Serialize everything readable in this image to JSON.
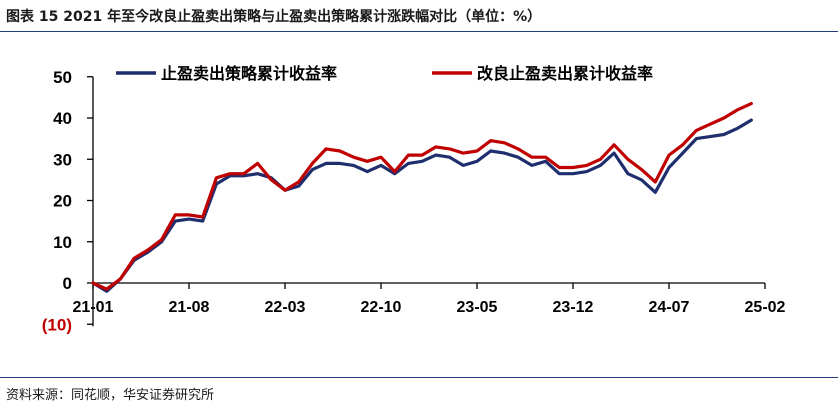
{
  "title": "图表 15  2021 年至今改良止盈卖出策略与止盈卖出策略累计涨跌幅对比（单位：%）",
  "source": "资料来源：同花顺，华安证券研究所",
  "chart_data": {
    "type": "line",
    "ylim": [
      -10,
      50
    ],
    "y_ticks": [
      {
        "value": 50,
        "label": "50"
      },
      {
        "value": 40,
        "label": "40"
      },
      {
        "value": 30,
        "label": "30"
      },
      {
        "value": 20,
        "label": "20"
      },
      {
        "value": 10,
        "label": "10"
      },
      {
        "value": 0,
        "label": "0"
      },
      {
        "value": -10,
        "label": "(10)"
      }
    ],
    "x_ticks": [
      {
        "date": "2021-01",
        "label": "21-01"
      },
      {
        "date": "2021-08",
        "label": "21-08"
      },
      {
        "date": "2022-03",
        "label": "22-03"
      },
      {
        "date": "2022-10",
        "label": "22-10"
      },
      {
        "date": "2023-05",
        "label": "23-05"
      },
      {
        "date": "2023-12",
        "label": "23-12"
      },
      {
        "date": "2024-07",
        "label": "24-07"
      },
      {
        "date": "2025-02",
        "label": "25-02"
      }
    ],
    "xlim": [
      "2021-01",
      "2025-02"
    ],
    "grid": false,
    "legend_position": "top",
    "series": [
      {
        "name": "止盈卖出策略累计收益率",
        "color": "#1f2f6e",
        "points": [
          [
            "2021-01",
            0
          ],
          [
            "2021-02",
            -2
          ],
          [
            "2021-03",
            1
          ],
          [
            "2021-04",
            5.5
          ],
          [
            "2021-05",
            7.5
          ],
          [
            "2021-06",
            10
          ],
          [
            "2021-07",
            15
          ],
          [
            "2021-08",
            15.5
          ],
          [
            "2021-09",
            15
          ],
          [
            "2021-10",
            24
          ],
          [
            "2021-11",
            26
          ],
          [
            "2021-12",
            26
          ],
          [
            "2022-01",
            26.5
          ],
          [
            "2022-02",
            25.5
          ],
          [
            "2022-03",
            22.5
          ],
          [
            "2022-04",
            23.5
          ],
          [
            "2022-05",
            27.5
          ],
          [
            "2022-06",
            29
          ],
          [
            "2022-07",
            29
          ],
          [
            "2022-08",
            28.5
          ],
          [
            "2022-09",
            27
          ],
          [
            "2022-10",
            28.5
          ],
          [
            "2022-11",
            26.5
          ],
          [
            "2022-12",
            29
          ],
          [
            "2023-01",
            29.5
          ],
          [
            "2023-02",
            31
          ],
          [
            "2023-03",
            30.5
          ],
          [
            "2023-04",
            28.5
          ],
          [
            "2023-05",
            29.5
          ],
          [
            "2023-06",
            32
          ],
          [
            "2023-07",
            31.5
          ],
          [
            "2023-08",
            30.5
          ],
          [
            "2023-09",
            28.5
          ],
          [
            "2023-10",
            29.5
          ],
          [
            "2023-11",
            26.5
          ],
          [
            "2023-12",
            26.5
          ],
          [
            "2024-01",
            27
          ],
          [
            "2024-02",
            28.5
          ],
          [
            "2024-03",
            31.5
          ],
          [
            "2024-04",
            26.5
          ],
          [
            "2024-05",
            25
          ],
          [
            "2024-06",
            22
          ],
          [
            "2024-07",
            28
          ],
          [
            "2024-08",
            31.5
          ],
          [
            "2024-09",
            35
          ],
          [
            "2024-10",
            35.5
          ],
          [
            "2024-11",
            36
          ],
          [
            "2024-12",
            37.5
          ],
          [
            "2025-01",
            39.5
          ]
        ]
      },
      {
        "name": "改良止盈卖出累计收益率",
        "color": "#c00000",
        "points": [
          [
            "2021-01",
            0
          ],
          [
            "2021-02",
            -1.5
          ],
          [
            "2021-03",
            1
          ],
          [
            "2021-04",
            6
          ],
          [
            "2021-05",
            8
          ],
          [
            "2021-06",
            10.5
          ],
          [
            "2021-07",
            16.5
          ],
          [
            "2021-08",
            16.5
          ],
          [
            "2021-09",
            16
          ],
          [
            "2021-10",
            25.5
          ],
          [
            "2021-11",
            26.5
          ],
          [
            "2021-12",
            26.5
          ],
          [
            "2022-01",
            29
          ],
          [
            "2022-02",
            25
          ],
          [
            "2022-03",
            22.5
          ],
          [
            "2022-04",
            24.5
          ],
          [
            "2022-05",
            29
          ],
          [
            "2022-06",
            32.5
          ],
          [
            "2022-07",
            32
          ],
          [
            "2022-08",
            30.5
          ],
          [
            "2022-09",
            29.5
          ],
          [
            "2022-10",
            30.5
          ],
          [
            "2022-11",
            27
          ],
          [
            "2022-12",
            31
          ],
          [
            "2023-01",
            31
          ],
          [
            "2023-02",
            33
          ],
          [
            "2023-03",
            32.5
          ],
          [
            "2023-04",
            31.5
          ],
          [
            "2023-05",
            32
          ],
          [
            "2023-06",
            34.5
          ],
          [
            "2023-07",
            34
          ],
          [
            "2023-08",
            32.5
          ],
          [
            "2023-09",
            30.5
          ],
          [
            "2023-10",
            30.5
          ],
          [
            "2023-11",
            28
          ],
          [
            "2023-12",
            28
          ],
          [
            "2024-01",
            28.5
          ],
          [
            "2024-02",
            30
          ],
          [
            "2024-03",
            33.5
          ],
          [
            "2024-04",
            30
          ],
          [
            "2024-05",
            27.5
          ],
          [
            "2024-06",
            24.5
          ],
          [
            "2024-07",
            31
          ],
          [
            "2024-08",
            33.5
          ],
          [
            "2024-09",
            37
          ],
          [
            "2024-10",
            38.5
          ],
          [
            "2024-11",
            40
          ],
          [
            "2024-12",
            42
          ],
          [
            "2025-01",
            43.5
          ]
        ]
      }
    ]
  }
}
